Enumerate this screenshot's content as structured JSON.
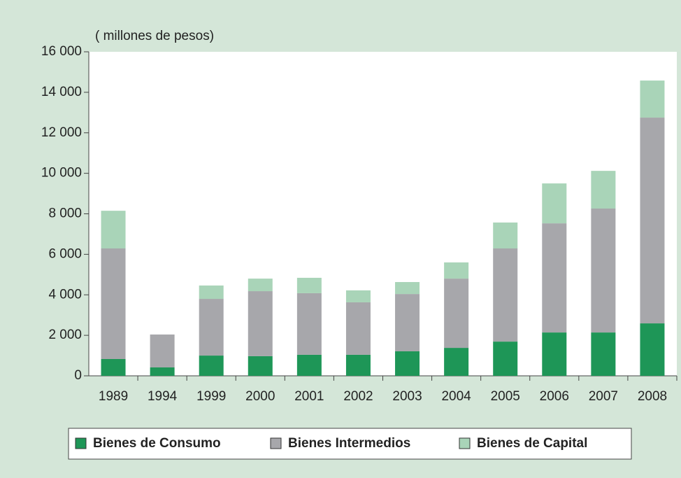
{
  "chart_data": {
    "type": "stacked_bar",
    "y_axis_label": "( millones de pesos)",
    "categories": [
      "1989",
      "1994",
      "1999",
      "2000",
      "2001",
      "2002",
      "2003",
      "2004",
      "2005",
      "2006",
      "2007",
      "2008"
    ],
    "series": [
      {
        "name": "Bienes de Consumo",
        "color": "#1e9657",
        "values": [
          830,
          415,
          1000,
          970,
          1040,
          1040,
          1210,
          1380,
          1690,
          2140,
          2140,
          2590
        ]
      },
      {
        "name": "Bienes Intermedios",
        "color": "#a7a7ab",
        "values": [
          5460,
          1625,
          2800,
          3210,
          3040,
          2590,
          2830,
          3420,
          4600,
          5390,
          6120,
          10160
        ]
      },
      {
        "name": "Bienes de Capital",
        "color": "#a9d4b8",
        "values": [
          1860,
          0,
          660,
          620,
          760,
          590,
          590,
          800,
          1280,
          1970,
          1860,
          1830
        ]
      }
    ],
    "ylim": [
      0,
      16000
    ],
    "yticks": [
      0,
      {
        "value": 2000,
        "label": "2 000"
      },
      {
        "value": 4000,
        "label": "4 000"
      },
      {
        "value": 6000,
        "label": "6 000"
      },
      {
        "value": 8000,
        "label": "8 000"
      },
      {
        "value": 10000,
        "label": "10 000"
      },
      {
        "value": 12000,
        "label": "12 000"
      },
      {
        "value": 14000,
        "label": "14 000"
      },
      {
        "value": 16000,
        "label": "16 000"
      }
    ],
    "legend": "bottom"
  }
}
